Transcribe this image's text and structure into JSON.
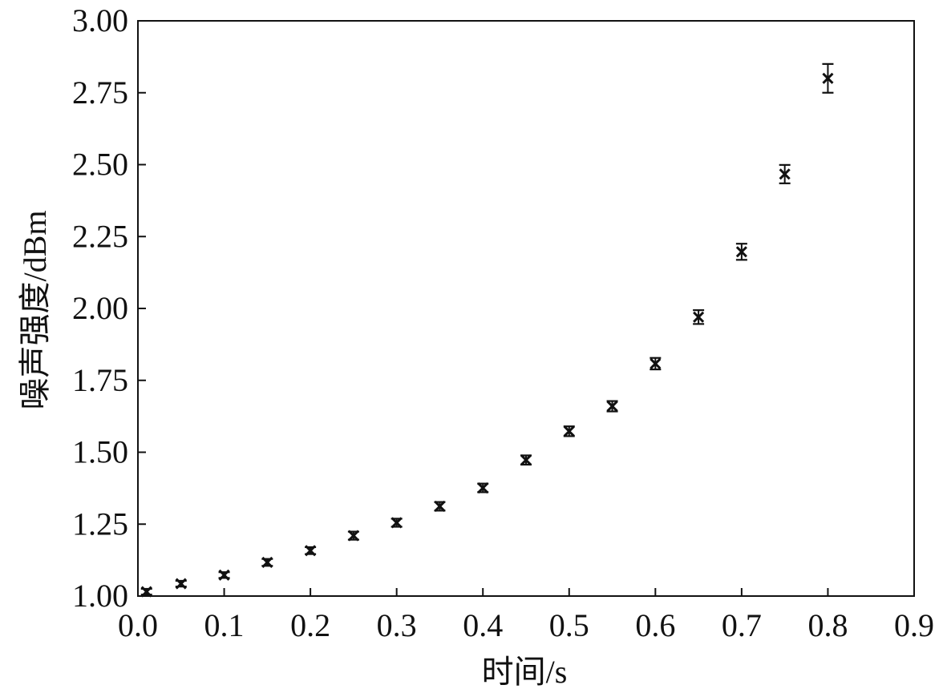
{
  "chart_data": {
    "type": "scatter",
    "title": "",
    "xlabel": "时间/s",
    "ylabel": "噪声强度/dBm",
    "xlim": [
      0.0,
      0.9
    ],
    "ylim": [
      1.0,
      3.0
    ],
    "xticks": [
      "0.0",
      "0.1",
      "0.2",
      "0.3",
      "0.4",
      "0.5",
      "0.6",
      "0.7",
      "0.8",
      "0.9"
    ],
    "yticks": [
      "1.00",
      "1.25",
      "1.50",
      "1.75",
      "2.00",
      "2.25",
      "2.50",
      "2.75",
      "3.00"
    ],
    "grid": false,
    "legend": "none",
    "marker": "x",
    "marker_color": "#111111",
    "series": [
      {
        "x": [
          0.01,
          0.05,
          0.1,
          0.15,
          0.2,
          0.25,
          0.3,
          0.35,
          0.4,
          0.45,
          0.5,
          0.55,
          0.6,
          0.65,
          0.7,
          0.75,
          0.8
        ],
        "y": [
          1.015,
          1.043,
          1.073,
          1.117,
          1.158,
          1.21,
          1.255,
          1.312,
          1.376,
          1.473,
          1.573,
          1.66,
          1.808,
          1.97,
          2.197,
          2.467,
          2.8
        ],
        "error": [
          0.01,
          0.01,
          0.01,
          0.012,
          0.012,
          0.014,
          0.014,
          0.015,
          0.015,
          0.016,
          0.017,
          0.018,
          0.02,
          0.024,
          0.028,
          0.032,
          0.05
        ]
      }
    ]
  }
}
